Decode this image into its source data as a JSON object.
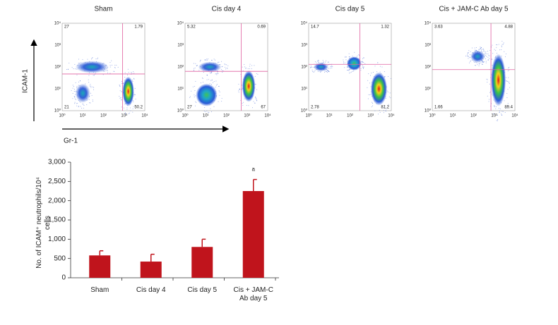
{
  "figure": {
    "panels": [
      {
        "title": "Sham",
        "quadrants": {
          "upper_left": 27,
          "upper_right": 1.79,
          "lower_left": 21,
          "lower_right": 50.2
        }
      },
      {
        "title": "Cis day 4",
        "quadrants": {
          "upper_left": 5.32,
          "upper_right": 0.69,
          "lower_left": 27,
          "lower_right": 67
        }
      },
      {
        "title": "Cis day 5",
        "quadrants": {
          "upper_left": 14.7,
          "upper_right": 1.32,
          "lower_left": 2.78,
          "lower_right": 81.2
        }
      },
      {
        "title": "Cis + JAM-C Ab day 5",
        "quadrants": {
          "upper_left": 3.63,
          "upper_right": 4.88,
          "lower_left": 1.66,
          "lower_right": 89.4
        }
      }
    ],
    "log_ticks": [
      "10⁰",
      "10¹",
      "10²",
      "10³",
      "10⁴"
    ],
    "y_axis_label": "ICAM-1",
    "x_axis_label": "Gr-1"
  },
  "chart_data": {
    "type": "bar",
    "ylabel": "No. of ICAM⁺ neutrophils/10⁴ cells",
    "categories": [
      "Sham",
      "Cis day 4",
      "Cis day 5",
      "Cis + JAM-C Ab day 5"
    ],
    "values": [
      580,
      420,
      800,
      2250
    ],
    "errors": [
      120,
      190,
      200,
      300
    ],
    "annotation": "a",
    "color": "#c0141c",
    "ylim": [
      0,
      3000
    ],
    "yticks": [
      0,
      500,
      {
        "value": 1000,
        "label": "1,000"
      },
      {
        "value": 1500,
        "label": "1,500"
      },
      {
        "value": 2000,
        "label": "2,000"
      },
      {
        "value": 2500,
        "label": "2,500"
      },
      {
        "value": 3000,
        "label": "3,000"
      }
    ]
  }
}
